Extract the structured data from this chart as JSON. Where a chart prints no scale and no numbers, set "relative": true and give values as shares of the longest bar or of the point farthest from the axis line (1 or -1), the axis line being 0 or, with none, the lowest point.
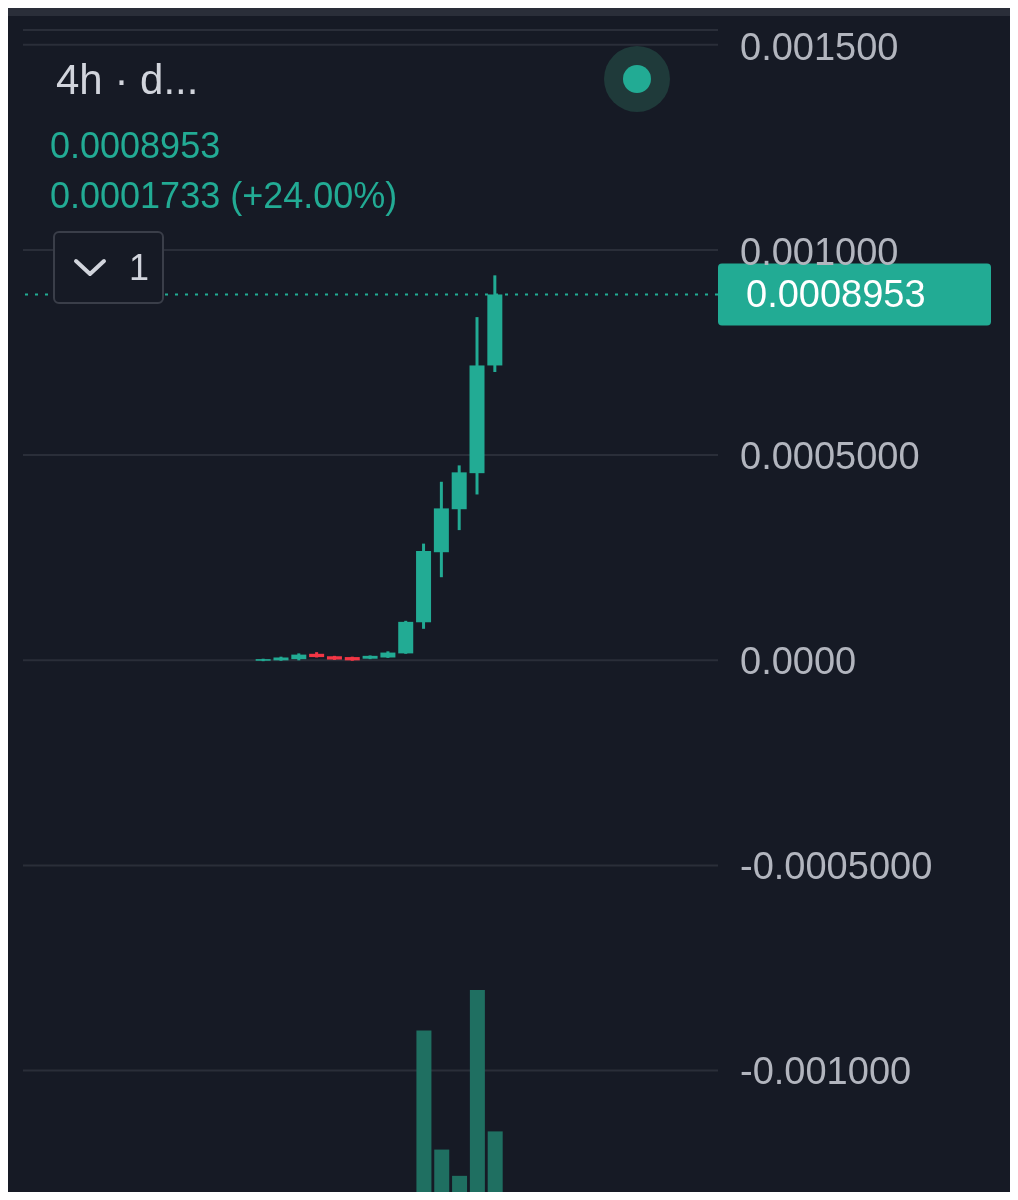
{
  "chart_data": [
    {
      "type": "candlestick",
      "title": "4h · d...",
      "annotations": [
        "0.0008953",
        "0.0001733 (+24.00%)",
        "1"
      ],
      "categories": [
        null,
        null,
        null,
        null,
        null,
        null,
        null,
        null,
        null,
        null,
        null,
        null,
        null,
        null,
        null,
        null,
        null,
        null,
        null,
        null,
        null,
        null,
        null,
        null,
        null,
        null,
        null,
        null,
        null,
        null,
        null,
        null,
        null,
        null,
        null,
        null,
        null,
        null,
        null
      ],
      "ohlc": [
        null,
        null,
        null,
        null,
        null,
        null,
        null,
        null,
        null,
        null,
        null,
        null,
        null,
        [
          1e-06,
          6e-06,
          0.0,
          5e-06
        ],
        [
          2e-06,
          1.1e-05,
          1e-06,
          9e-06
        ],
        [
          5e-06,
          1.9e-05,
          2e-06,
          1.6e-05
        ],
        [
          1.8e-05,
          2.2e-05,
          9e-06,
          1e-05
        ],
        [
          1.2e-05,
          1.3e-05,
          3e-06,
          4e-06
        ],
        [
          1e-05,
          1.1e-05,
          1e-06,
          2e-06
        ],
        [
          6e-06,
          1.4e-05,
          5e-06,
          1.3e-05
        ],
        [
          9e-06,
          2.4e-05,
          8e-06,
          2.1e-05
        ],
        [
          1.9e-05,
          9.85e-05,
          1.8e-05,
          9.6e-05
        ],
        [
          9.5e-05,
          0.000287,
          7.9e-05,
          0.000269
        ],
        [
          0.000266,
          0.000438,
          0.000205,
          0.000373
        ],
        [
          0.000371,
          0.000478,
          0.00032,
          0.000461
        ],
        [
          0.000459,
          0.00084,
          0.000407,
          0.000722
        ],
        [
          0.000722,
          0.000942,
          0.000706,
          0.0008953
        ],
        null,
        null,
        null,
        null,
        null,
        null,
        null,
        null,
        null,
        null,
        null,
        null
      ],
      "colors": [
        null,
        null,
        null,
        null,
        null,
        null,
        null,
        null,
        null,
        null,
        null,
        null,
        null,
        "#22ab94",
        "#22ab94",
        "#22ab94",
        "#f23645",
        "#f23645",
        "#f23645",
        "#22ab94",
        "#22ab94",
        "#22ab94",
        "#22ab94",
        "#22ab94",
        "#22ab94",
        "#22ab94",
        "#22ab94",
        null,
        null,
        null,
        null,
        null,
        null,
        null,
        null,
        null,
        null,
        null,
        null
      ],
      "ylim": [
        -0.001296,
        0.001541
      ],
      "yticks": [
        {
          "value": -0.001,
          "label": "-0.001000"
        },
        {
          "value": -0.0005,
          "label": "-0.0005000"
        },
        {
          "value": 0,
          "label": "0.0000"
        },
        {
          "value": 0.0005,
          "label": "0.0005000"
        },
        {
          "value": 0.001,
          "label": "0.001000"
        },
        {
          "value": 0.0015,
          "label": "0.001500"
        }
      ],
      "tick_labels": "y",
      "grid": "y",
      "ref_lines": [
        {
          "axis": "y",
          "value": 0.0008953,
          "label": "0.0008953",
          "color": "#22ab94",
          "line_style": "dotted"
        }
      ]
    },
    {
      "type": "bar",
      "relative": true,
      "categories": [
        null,
        null,
        null,
        null,
        null
      ],
      "values": [
        0.8,
        0.21,
        0.08,
        1,
        0.3
      ],
      "color": "#1f6f61"
    }
  ]
}
